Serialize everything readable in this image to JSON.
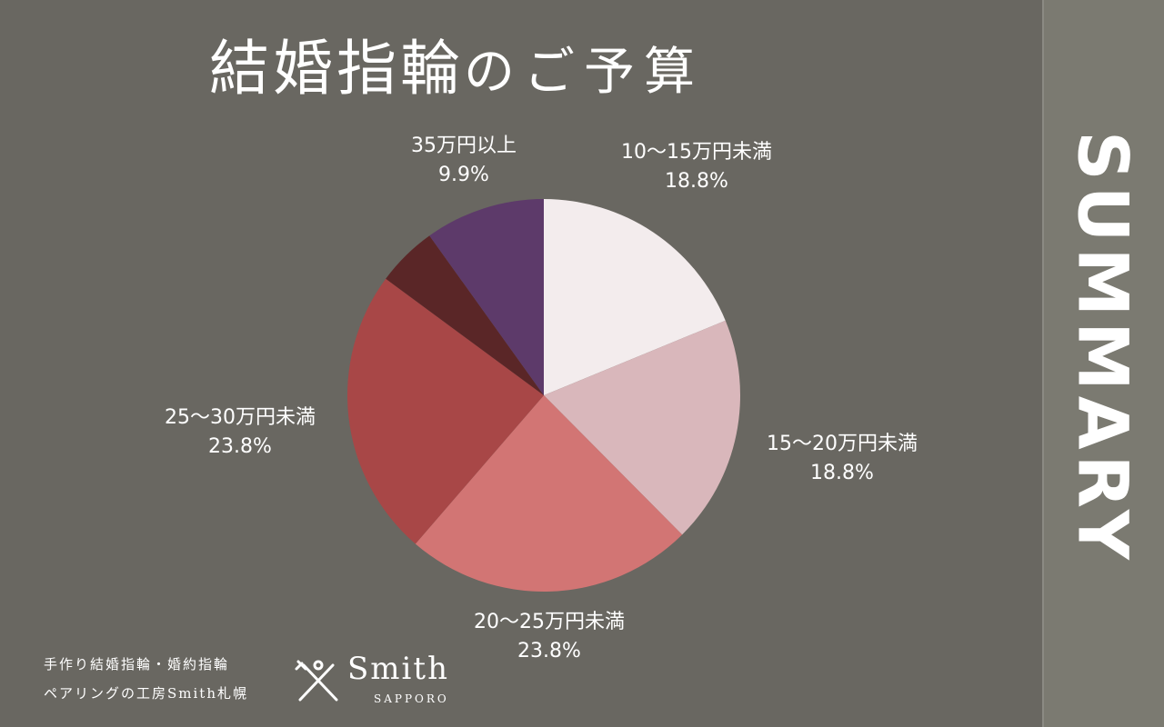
{
  "title": {
    "kanji": "結婚指輪",
    "kana": "のご予算"
  },
  "side_label": "SUMMARY",
  "chart_data": {
    "type": "pie",
    "title": "結婚指輪のご予算",
    "slices": [
      {
        "label": "10〜15万円未満",
        "value": 18.8,
        "value_text": "18.8%",
        "color": "#f3eced"
      },
      {
        "label": "15〜20万円未満",
        "value": 18.8,
        "value_text": "18.8%",
        "color": "#d9b7bb"
      },
      {
        "label": "20〜25万円未満",
        "value": 23.8,
        "value_text": "23.8%",
        "color": "#d27574"
      },
      {
        "label": "25〜30万円未満",
        "value": 23.8,
        "value_text": "23.8%",
        "color": "#a84747"
      },
      {
        "label": "",
        "value": 5.0,
        "value_text": "",
        "color": "#5a2627"
      },
      {
        "label": "35万円以上",
        "value": 9.9,
        "value_text": "9.9%",
        "color": "#5d3a6a"
      }
    ],
    "start_angle_deg": 0,
    "direction": "clockwise"
  },
  "footer": {
    "line1": "手作り結婚指輪・婚約指輪",
    "line2": "ペアリングの工房Smith札幌"
  },
  "logo": {
    "name": "Smith",
    "sub": "SAPPORO"
  },
  "colors": {
    "background": "#696761",
    "side_panel": "#7b7a71",
    "text": "#ffffff"
  }
}
